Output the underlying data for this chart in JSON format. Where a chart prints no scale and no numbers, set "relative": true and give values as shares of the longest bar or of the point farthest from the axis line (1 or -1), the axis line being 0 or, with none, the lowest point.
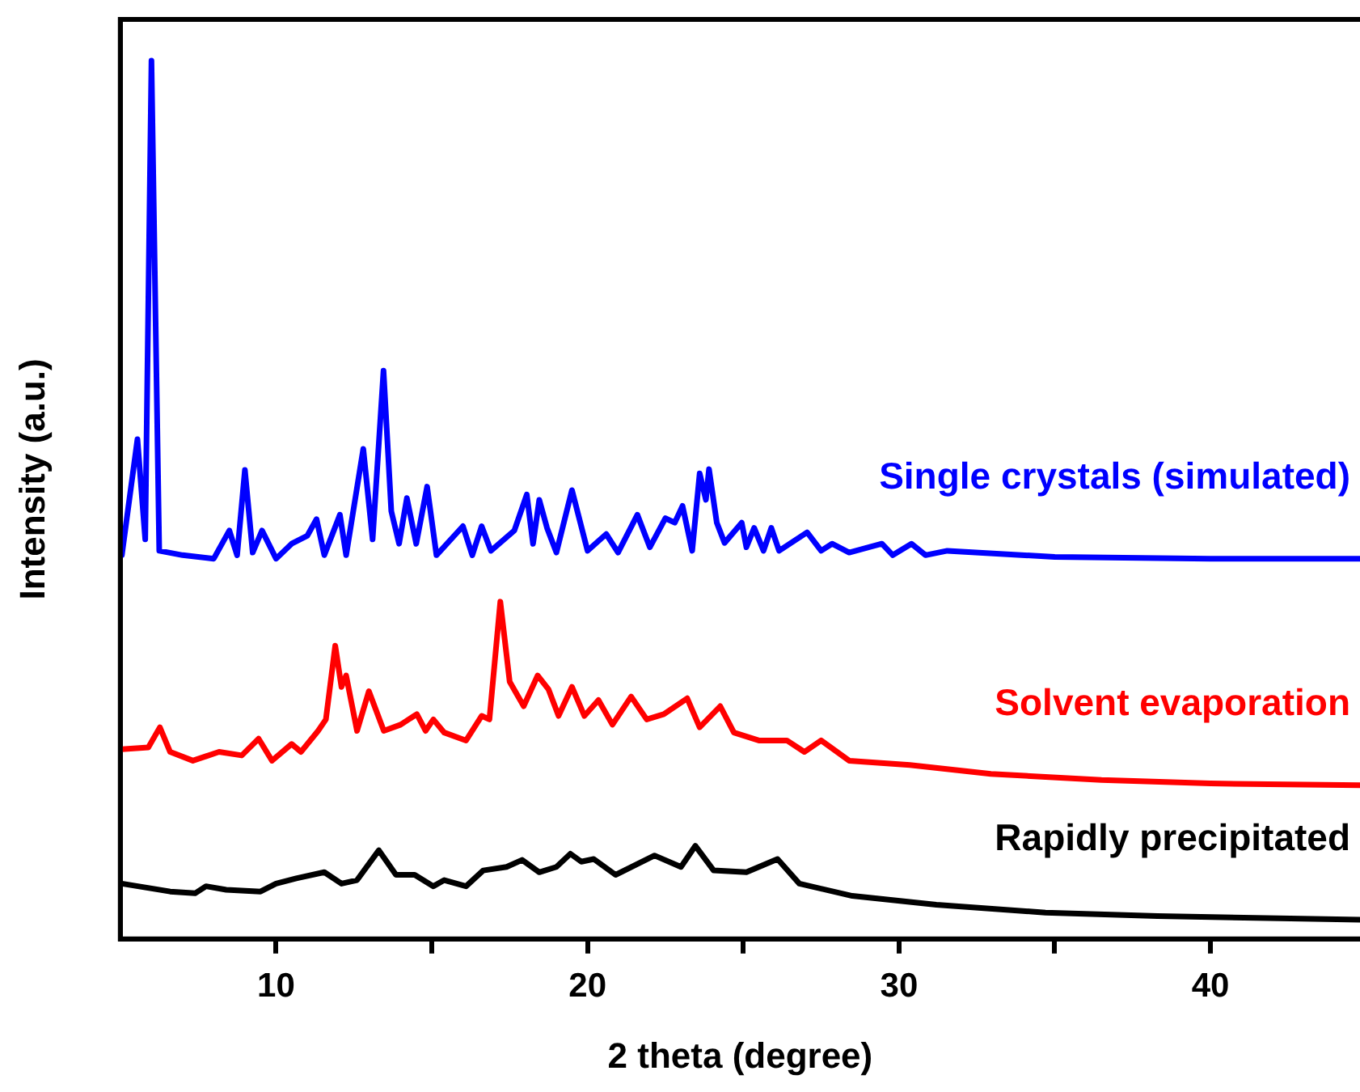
{
  "chart_data": {
    "type": "line",
    "xlabel": "2 theta (degree)",
    "ylabel": "Intensity (a.u.)",
    "relative": true,
    "legend": false,
    "grid": false,
    "marker": "none",
    "line_style": "solid",
    "xlim": [
      5,
      44.8
    ],
    "xticks": [
      10,
      {
        "value": 15,
        "label": null
      },
      20,
      {
        "value": 25,
        "label": null
      },
      30,
      {
        "value": 35,
        "label": null
      },
      40
    ],
    "series": [
      {
        "name": "Single crystals (simulated)",
        "color": "#0000ff",
        "x": [
          5.05,
          5.55,
          5.8,
          6.0,
          6.25,
          7.0,
          8.0,
          8.5,
          8.75,
          9.0,
          9.25,
          9.55,
          10.0,
          10.5,
          11.0,
          11.3,
          11.55,
          12.05,
          12.25,
          12.8,
          13.1,
          13.45,
          13.7,
          13.95,
          14.2,
          14.5,
          14.85,
          15.15,
          16.0,
          16.3,
          16.6,
          16.9,
          17.65,
          18.05,
          18.25,
          18.45,
          18.7,
          19.0,
          19.5,
          20.0,
          20.6,
          20.98,
          21.6,
          22.0,
          22.5,
          22.8,
          23.05,
          23.36,
          23.6,
          23.8,
          23.9,
          24.15,
          24.4,
          24.95,
          25.1,
          25.35,
          25.65,
          25.9,
          26.15,
          27.05,
          27.5,
          27.85,
          28.4,
          29.45,
          29.8,
          30.4,
          30.85,
          31.55,
          35.0,
          40.0,
          44.8
        ],
        "values": [
          0.437,
          0.569,
          0.455,
          1.0,
          0.442,
          0.437,
          0.433,
          0.465,
          0.437,
          0.534,
          0.44,
          0.465,
          0.433,
          0.45,
          0.459,
          0.478,
          0.437,
          0.483,
          0.437,
          0.558,
          0.455,
          0.647,
          0.487,
          0.45,
          0.502,
          0.45,
          0.515,
          0.437,
          0.47,
          0.437,
          0.47,
          0.442,
          0.465,
          0.506,
          0.45,
          0.5,
          0.468,
          0.44,
          0.511,
          0.442,
          0.461,
          0.44,
          0.483,
          0.446,
          0.479,
          0.474,
          0.493,
          0.442,
          0.53,
          0.5,
          0.535,
          0.474,
          0.451,
          0.474,
          0.446,
          0.468,
          0.442,
          0.468,
          0.442,
          0.463,
          0.442,
          0.45,
          0.44,
          0.45,
          0.437,
          0.45,
          0.437,
          0.442,
          0.435,
          0.433,
          0.433
        ]
      },
      {
        "name": "Solvent evaporation",
        "color": "#ff0000",
        "x": [
          5.05,
          5.9,
          6.27,
          6.6,
          7.33,
          8.17,
          8.9,
          9.44,
          9.87,
          10.5,
          10.8,
          11.35,
          11.6,
          11.9,
          12.1,
          12.25,
          12.6,
          12.98,
          13.46,
          14.0,
          14.52,
          14.8,
          15.05,
          15.4,
          16.1,
          16.6,
          16.85,
          17.2,
          17.5,
          17.95,
          18.4,
          18.75,
          19.07,
          19.5,
          19.9,
          20.35,
          20.8,
          21.4,
          21.9,
          22.45,
          23.2,
          23.6,
          24.26,
          24.7,
          25.5,
          26.4,
          26.96,
          27.5,
          28.4,
          30.35,
          32.95,
          36.5,
          40.0,
          44.8
        ],
        "values": [
          0.216,
          0.218,
          0.241,
          0.213,
          0.203,
          0.213,
          0.209,
          0.228,
          0.203,
          0.222,
          0.213,
          0.237,
          0.25,
          0.334,
          0.287,
          0.3,
          0.237,
          0.282,
          0.237,
          0.244,
          0.256,
          0.237,
          0.25,
          0.235,
          0.226,
          0.254,
          0.25,
          0.384,
          0.293,
          0.265,
          0.3,
          0.284,
          0.254,
          0.287,
          0.254,
          0.272,
          0.244,
          0.276,
          0.25,
          0.256,
          0.274,
          0.241,
          0.265,
          0.235,
          0.226,
          0.226,
          0.213,
          0.226,
          0.203,
          0.198,
          0.188,
          0.181,
          0.177,
          0.175
        ]
      },
      {
        "name": "Rapidly precipitated",
        "color": "#000000",
        "x": [
          5.05,
          6.6,
          7.4,
          7.75,
          8.4,
          9.5,
          10.0,
          10.65,
          11.55,
          12.1,
          12.6,
          13.3,
          13.85,
          14.45,
          15.05,
          15.4,
          16.1,
          16.65,
          17.4,
          17.9,
          18.45,
          19.0,
          19.45,
          19.8,
          20.2,
          20.9,
          22.15,
          23.0,
          23.46,
          24.05,
          25.1,
          26.1,
          26.8,
          28.5,
          31.2,
          34.7,
          38.3,
          44.8
        ],
        "values": [
          0.063,
          0.054,
          0.052,
          0.06,
          0.056,
          0.054,
          0.063,
          0.069,
          0.076,
          0.063,
          0.067,
          0.101,
          0.073,
          0.073,
          0.06,
          0.067,
          0.06,
          0.078,
          0.082,
          0.09,
          0.076,
          0.082,
          0.097,
          0.088,
          0.091,
          0.073,
          0.095,
          0.082,
          0.106,
          0.078,
          0.076,
          0.091,
          0.063,
          0.049,
          0.039,
          0.03,
          0.026,
          0.022
        ]
      }
    ]
  }
}
